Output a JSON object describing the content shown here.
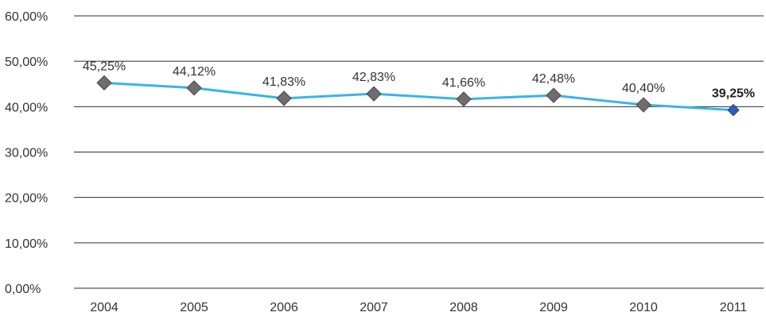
{
  "chart_data": {
    "type": "line",
    "title": "",
    "xlabel": "",
    "ylabel": "",
    "categories": [
      "2004",
      "2005",
      "2006",
      "2007",
      "2008",
      "2009",
      "2010",
      "2011"
    ],
    "series": [
      {
        "values": [
          45.25,
          44.12,
          41.83,
          42.83,
          41.66,
          42.48,
          40.4,
          39.25
        ],
        "value_labels": [
          "45,25%",
          "44,12%",
          "41,83%",
          "42,83%",
          "41,66%",
          "42,48%",
          "40,40%",
          "39,25%"
        ]
      }
    ],
    "ylim": [
      0,
      60
    ],
    "yticks": [
      0,
      10,
      20,
      30,
      40,
      50,
      60
    ],
    "ytick_labels": [
      "0,00%",
      "10,00%",
      "20,00%",
      "30,00%",
      "40,00%",
      "50,00%",
      "60,00%"
    ],
    "grid": true,
    "legend": "none",
    "colors": {
      "line": "#3ab4e8",
      "marker": "#6d6d6d",
      "marker_highlight": "#2f5fb3",
      "grid": "#2e2e2e"
    }
  }
}
